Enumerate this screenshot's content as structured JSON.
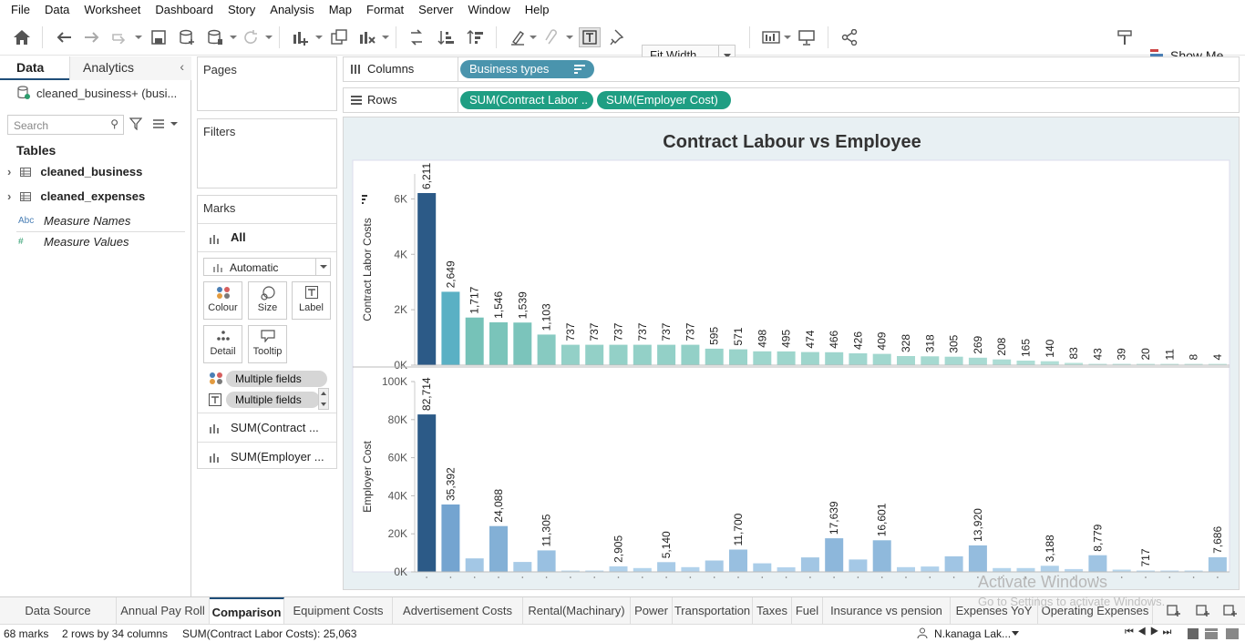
{
  "menu": [
    "File",
    "Data",
    "Worksheet",
    "Dashboard",
    "Story",
    "Analysis",
    "Map",
    "Format",
    "Server",
    "Window",
    "Help"
  ],
  "toolbar": {
    "fit_label": "Fit Width",
    "show_me_label": "Show Me"
  },
  "left_pane": {
    "tab_data": "Data",
    "tab_analytics": "Analytics",
    "datasource": "cleaned_business+ (busi...",
    "search_placeholder": "Search",
    "tables_header": "Tables",
    "tables": [
      "cleaned_business",
      "cleaned_expenses"
    ],
    "measure_names": "Measure Names",
    "measure_values": "Measure Values",
    "abc_icon": "Abc",
    "hash_icon": "#"
  },
  "cards": {
    "pages": "Pages",
    "filters": "Filters",
    "marks": "Marks",
    "all": "All",
    "mark_type": "Automatic",
    "buttons": [
      "Colour",
      "Size",
      "Label",
      "Detail",
      "Tooltip"
    ],
    "multiple_fields": "Multiple fields",
    "sum_contract": "SUM(Contract ...",
    "sum_employer": "SUM(Employer ..."
  },
  "shelves": {
    "columns_label": "Columns",
    "rows_label": "Rows",
    "columns_pill": "Business types",
    "rows_pills": [
      "SUM(Contract Labor ..",
      "SUM(Employer Cost)"
    ]
  },
  "chart_data": [
    {
      "type": "bar",
      "title": "Contract Labour vs Employee",
      "ylabel": "Contract Labor Costs",
      "yticks": [
        "0K",
        "2K",
        "4K",
        "6K"
      ],
      "ylim": [
        0,
        6900
      ],
      "values": [
        6211,
        2649,
        1717,
        1546,
        1539,
        1103,
        737,
        737,
        737,
        737,
        737,
        737,
        595,
        571,
        498,
        495,
        474,
        466,
        426,
        409,
        328,
        318,
        305,
        269,
        208,
        165,
        140,
        83,
        43,
        39,
        20,
        11,
        8,
        4
      ],
      "labels": [
        "6,211",
        "2,649",
        "1,717",
        "1,546",
        "1,539",
        "1,103",
        "737",
        "737",
        "737",
        "737",
        "737",
        "737",
        "595",
        "571",
        "498",
        "495",
        "474",
        "466",
        "426",
        "409",
        "328",
        "318",
        "305",
        "269",
        "208",
        "165",
        "140",
        "83",
        "43",
        "39",
        "20",
        "11",
        "8",
        "4"
      ]
    },
    {
      "type": "bar",
      "ylabel": "Employer Cost",
      "yticks": [
        "0K",
        "20K",
        "40K",
        "60K",
        "80K",
        "100K"
      ],
      "ylim": [
        0,
        100000
      ],
      "values": [
        82714,
        35392,
        7100,
        24088,
        5200,
        11305,
        400,
        600,
        2905,
        2000,
        5140,
        2500,
        6000,
        11700,
        4500,
        2400,
        7600,
        17639,
        6500,
        16601,
        2500,
        2800,
        8200,
        13920,
        2000,
        2000,
        3188,
        1500,
        8779,
        1200,
        717,
        500,
        600,
        7686
      ],
      "labels": [
        "82,714",
        "35,392",
        "",
        "24,088",
        "",
        "11,305",
        "",
        "",
        "2,905",
        "",
        "5,140",
        "",
        "",
        "11,700",
        "",
        "",
        "",
        "17,639",
        "",
        "16,601",
        "",
        "",
        "",
        "13,920",
        "",
        "",
        "3,188",
        "",
        "8,779",
        "",
        "717",
        "",
        "",
        "7,686"
      ]
    }
  ],
  "colors": {
    "teal_pill": "#1f9e83",
    "blue_pill": "#4a94ad",
    "dark_bar": "#2c5a87"
  },
  "sheet_tabs": [
    "Data Source",
    "Annual Pay Roll",
    "Comparison",
    "Equipment Costs",
    "Advertisement Costs",
    "Rental(Machinary)",
    "Power",
    "Transportation",
    "Taxes",
    "Fuel",
    "Insurance vs pension",
    "Expenses YoY",
    "Operating Expenses"
  ],
  "status": {
    "marks": "68 marks",
    "dims": "2 rows  by  34 columns",
    "sum": "SUM(Contract Labor Costs): 25,063",
    "user": "N.kanaga Lak..."
  },
  "watermark": {
    "line1": "Activate Windows",
    "line2": "Go to Settings to activate Windows."
  }
}
